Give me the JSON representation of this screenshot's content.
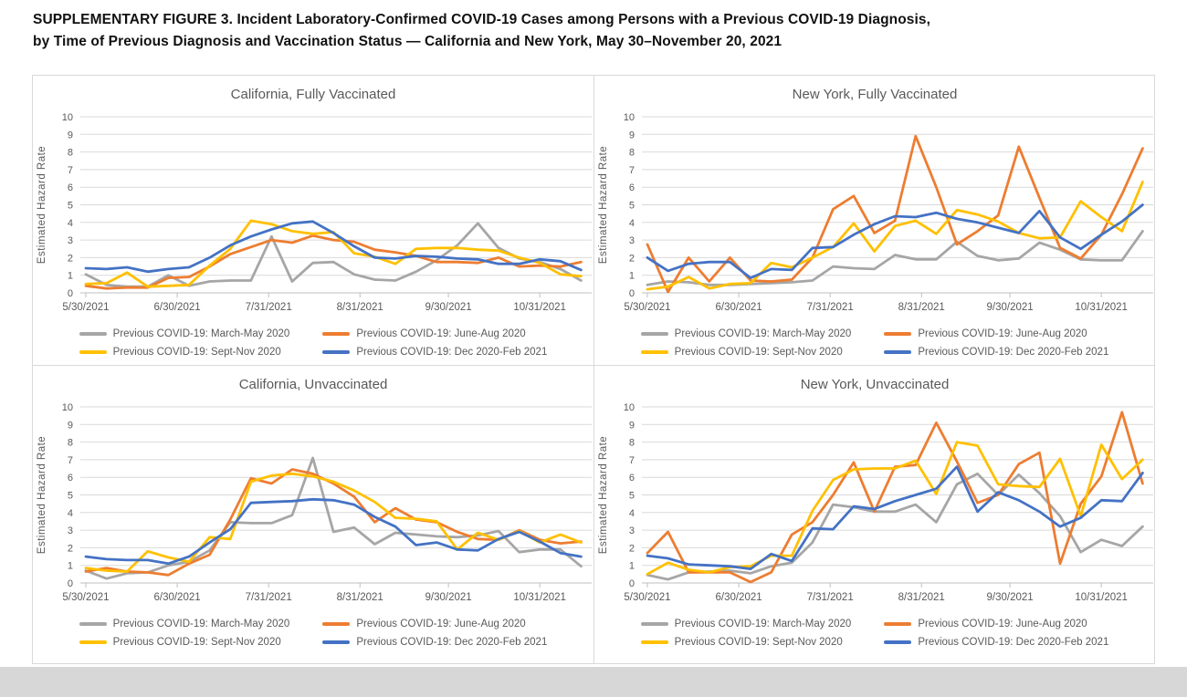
{
  "page": {
    "title_line1": "SUPPLEMENTARY FIGURE 3. Incident Laboratory-Confirmed COVID-19 Cases among Persons with a Previous COVID-19 Diagnosis,",
    "title_line2": "by Time of Previous Diagnosis and Vaccination Status — California and New York, May 30–November 20, 2021"
  },
  "colors": {
    "gray": "#a6a6a6",
    "orange": "#ed7d31",
    "yellow": "#ffc000",
    "blue": "#4472c4",
    "grid": "#d9d9d9",
    "axis": "#bfbfbf",
    "text": "#595959"
  },
  "legend": [
    {
      "key": "gray",
      "label": "Previous COVID-19: March-May 2020"
    },
    {
      "key": "orange",
      "label": "Previous COVID-19: June-Aug 2020"
    },
    {
      "key": "yellow",
      "label": "Previous COVID-19: Sept-Nov 2020"
    },
    {
      "key": "blue",
      "label": "Previous COVID-19: Dec 2020-Feb 2021"
    }
  ],
  "axis": {
    "ylabel": "Estimated Hazard Rate",
    "ylim": [
      0,
      10
    ],
    "yticks": [
      0,
      1,
      2,
      3,
      4,
      5,
      6,
      7,
      8,
      9,
      10
    ],
    "xticks": [
      "5/30/2021",
      "6/30/2021",
      "7/31/2021",
      "8/31/2021",
      "9/30/2021",
      "10/31/2021"
    ],
    "xtick_days": [
      0,
      31,
      62,
      93,
      123,
      154
    ],
    "x_interval_days": 7,
    "week_start_dates": [
      "5/30/2021",
      "6/6/2021",
      "6/13/2021",
      "6/20/2021",
      "6/27/2021",
      "7/4/2021",
      "7/11/2021",
      "7/18/2021",
      "7/25/2021",
      "8/1/2021",
      "8/8/2021",
      "8/15/2021",
      "8/22/2021",
      "8/29/2021",
      "9/5/2021",
      "9/12/2021",
      "9/19/2021",
      "9/26/2021",
      "10/3/2021",
      "10/10/2021",
      "10/17/2021",
      "10/24/2021",
      "10/31/2021",
      "11/7/2021",
      "11/14/2021"
    ]
  },
  "chart_data": [
    {
      "type": "line",
      "title": "California, Fully Vaccinated",
      "region": "California",
      "vaccination_status": "Fully Vaccinated",
      "ylabel": "Estimated Hazard Rate",
      "ylim": [
        0,
        10
      ],
      "series": [
        {
          "name": "Previous COVID-19: March-May 2020",
          "color_key": "gray",
          "values": [
            1.05,
            0.45,
            0.35,
            0.35,
            1.0,
            0.4,
            0.65,
            0.7,
            0.7,
            3.2,
            0.65,
            1.7,
            1.75,
            1.05,
            0.75,
            0.7,
            1.2,
            1.85,
            2.7,
            3.95,
            2.55,
            1.95,
            1.75,
            1.35,
            0.7
          ]
        },
        {
          "name": "Previous COVID-19: June-Aug 2020",
          "color_key": "orange",
          "values": [
            0.4,
            0.25,
            0.3,
            0.3,
            0.85,
            0.9,
            1.5,
            2.2,
            2.6,
            3.0,
            2.85,
            3.25,
            3.0,
            2.9,
            2.45,
            2.3,
            2.1,
            1.75,
            1.75,
            1.7,
            2.0,
            1.5,
            1.55,
            1.5,
            1.75
          ]
        },
        {
          "name": "Previous COVID-19: Sept-Nov 2020",
          "color_key": "yellow",
          "values": [
            0.5,
            0.55,
            1.15,
            0.35,
            0.4,
            0.45,
            1.55,
            2.5,
            4.1,
            3.9,
            3.5,
            3.35,
            3.45,
            2.25,
            2.05,
            1.65,
            2.5,
            2.55,
            2.55,
            2.45,
            2.4,
            2.0,
            1.7,
            1.05,
            0.95
          ]
        },
        {
          "name": "Previous COVID-19: Dec 2020-Feb 2021",
          "color_key": "blue",
          "values": [
            1.4,
            1.35,
            1.45,
            1.2,
            1.35,
            1.45,
            2.0,
            2.7,
            3.2,
            3.6,
            3.95,
            4.05,
            3.4,
            2.65,
            2.0,
            1.95,
            2.1,
            2.05,
            1.95,
            1.9,
            1.65,
            1.65,
            1.9,
            1.8,
            1.3
          ]
        }
      ]
    },
    {
      "type": "line",
      "title": "New York, Fully Vaccinated",
      "region": "New York",
      "vaccination_status": "Fully Vaccinated",
      "ylabel": "Estimated Hazard Rate",
      "ylim": [
        0,
        10
      ],
      "series": [
        {
          "name": "Previous COVID-19: March-May 2020",
          "color_key": "gray",
          "values": [
            0.45,
            0.65,
            0.6,
            0.45,
            0.45,
            0.5,
            0.55,
            0.6,
            0.7,
            1.5,
            1.4,
            1.35,
            2.15,
            1.9,
            1.9,
            2.9,
            2.1,
            1.85,
            1.95,
            2.85,
            2.45,
            1.9,
            1.85,
            1.85,
            3.5
          ]
        },
        {
          "name": "Previous COVID-19: June-Aug 2020",
          "color_key": "orange",
          "values": [
            2.75,
            0.05,
            2.0,
            0.65,
            2.0,
            0.7,
            0.65,
            0.75,
            2.0,
            4.75,
            5.5,
            3.4,
            4.1,
            8.9,
            6.0,
            2.75,
            3.5,
            4.4,
            8.3,
            5.4,
            2.55,
            1.95,
            3.3,
            5.6,
            8.2
          ]
        },
        {
          "name": "Previous COVID-19: Sept-Nov 2020",
          "color_key": "yellow",
          "values": [
            0.2,
            0.35,
            0.9,
            0.25,
            0.5,
            0.55,
            1.7,
            1.45,
            2.0,
            2.6,
            3.95,
            2.35,
            3.8,
            4.1,
            3.35,
            4.7,
            4.45,
            4.05,
            3.4,
            3.1,
            3.15,
            5.2,
            4.3,
            3.5,
            6.3
          ]
        },
        {
          "name": "Previous COVID-19: Dec 2020-Feb 2021",
          "color_key": "blue",
          "values": [
            2.0,
            1.25,
            1.65,
            1.75,
            1.75,
            0.85,
            1.35,
            1.3,
            2.55,
            2.6,
            3.3,
            3.9,
            4.35,
            4.3,
            4.55,
            4.2,
            4.0,
            3.7,
            3.4,
            4.65,
            3.15,
            2.5,
            3.3,
            4.05,
            5.0
          ]
        }
      ]
    },
    {
      "type": "line",
      "title": "California, Unvaccinated",
      "region": "California",
      "vaccination_status": "Unvaccinated",
      "ylabel": "Estimated Hazard Rate",
      "ylim": [
        0,
        10
      ],
      "series": [
        {
          "name": "Previous COVID-19: March-May 2020",
          "color_key": "gray",
          "values": [
            0.7,
            0.25,
            0.55,
            0.6,
            1.0,
            1.2,
            1.85,
            3.45,
            3.4,
            3.4,
            3.85,
            7.1,
            2.9,
            3.15,
            2.2,
            2.85,
            2.75,
            2.65,
            2.6,
            2.7,
            2.95,
            1.75,
            1.9,
            1.9,
            0.95
          ]
        },
        {
          "name": "Previous COVID-19: June-Aug 2020",
          "color_key": "orange",
          "values": [
            0.65,
            0.85,
            0.65,
            0.6,
            0.45,
            1.1,
            1.6,
            3.6,
            5.95,
            5.65,
            6.45,
            6.2,
            5.65,
            4.9,
            3.45,
            4.25,
            3.6,
            3.45,
            2.9,
            2.5,
            2.45,
            3.0,
            2.45,
            2.25,
            2.35
          ]
        },
        {
          "name": "Previous COVID-19: Sept-Nov 2020",
          "color_key": "yellow",
          "values": [
            0.85,
            0.7,
            0.65,
            1.8,
            1.45,
            1.2,
            2.6,
            2.5,
            5.75,
            6.1,
            6.2,
            6.05,
            5.75,
            5.25,
            4.6,
            3.7,
            3.65,
            3.5,
            1.9,
            2.85,
            2.45,
            2.95,
            2.3,
            2.75,
            2.3
          ]
        },
        {
          "name": "Previous COVID-19: Dec 2020-Feb 2021",
          "color_key": "blue",
          "values": [
            1.5,
            1.35,
            1.3,
            1.3,
            1.1,
            1.5,
            2.3,
            3.05,
            4.55,
            4.6,
            4.65,
            4.75,
            4.7,
            4.45,
            3.75,
            3.2,
            2.15,
            2.3,
            1.9,
            1.85,
            2.5,
            2.9,
            2.35,
            1.7,
            1.5
          ]
        }
      ]
    },
    {
      "type": "line",
      "title": "New York, Unvaccinated",
      "region": "New York",
      "vaccination_status": "Unvaccinated",
      "ylabel": "Estimated Hazard Rate",
      "ylim": [
        0,
        10
      ],
      "series": [
        {
          "name": "Previous COVID-19: March-May 2020",
          "color_key": "gray",
          "values": [
            0.45,
            0.2,
            0.6,
            0.65,
            0.7,
            0.55,
            0.95,
            1.15,
            2.3,
            4.45,
            4.3,
            4.05,
            4.05,
            4.45,
            3.45,
            5.6,
            6.2,
            5.0,
            6.15,
            5.1,
            3.8,
            1.75,
            2.45,
            2.1,
            3.2
          ]
        },
        {
          "name": "Previous COVID-19: June-Aug 2020",
          "color_key": "orange",
          "values": [
            1.7,
            2.9,
            0.6,
            0.6,
            0.6,
            0.05,
            0.6,
            2.75,
            3.45,
            5.0,
            6.85,
            4.05,
            6.6,
            6.7,
            9.1,
            6.9,
            4.55,
            5.0,
            6.75,
            7.4,
            1.1,
            4.5,
            6.05,
            9.7,
            5.65
          ]
        },
        {
          "name": "Previous COVID-19: Sept-Nov 2020",
          "color_key": "yellow",
          "values": [
            0.5,
            1.15,
            0.75,
            0.6,
            0.9,
            0.95,
            1.55,
            1.55,
            4.1,
            5.85,
            6.45,
            6.5,
            6.5,
            6.95,
            5.05,
            8.0,
            7.8,
            5.6,
            5.5,
            5.45,
            7.05,
            3.8,
            7.85,
            5.9,
            7.0
          ]
        },
        {
          "name": "Previous COVID-19: Dec 2020-Feb 2021",
          "color_key": "blue",
          "values": [
            1.55,
            1.4,
            1.05,
            1.0,
            0.95,
            0.8,
            1.65,
            1.25,
            3.1,
            3.05,
            4.35,
            4.2,
            4.65,
            5.0,
            5.35,
            6.6,
            4.05,
            5.15,
            4.7,
            4.05,
            3.2,
            3.7,
            4.7,
            4.65,
            6.25
          ]
        }
      ]
    }
  ]
}
